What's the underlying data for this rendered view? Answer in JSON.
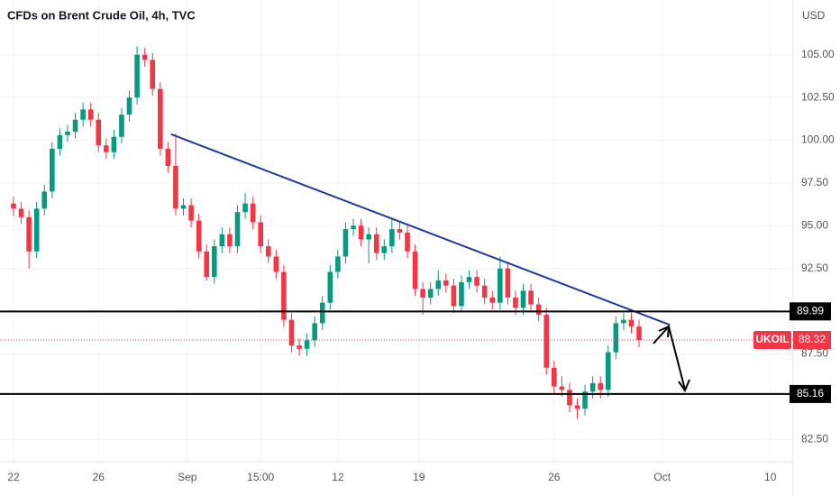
{
  "chart_data": {
    "type": "candlestick",
    "title": "CFDs on Brent Crude Oil, 4h, TVC",
    "y_unit": "USD",
    "up_color": "#089981",
    "down_color": "#f23645",
    "open": [
      96.3,
      96,
      95.5,
      93.5,
      96,
      97,
      99.5,
      100.3,
      100.5,
      101.2,
      101.8,
      101.2,
      99.7,
      99.3,
      100.2,
      101.5,
      102.5,
      105,
      104.7,
      103,
      99.5,
      98.5,
      96,
      96.2,
      95.3,
      93.5,
      92,
      93.8,
      94.5,
      93.8,
      95.8,
      96.3,
      95.2,
      93.8,
      93.2,
      92.3,
      89.5,
      88,
      87.8,
      88.3,
      89.3,
      90.5,
      92.3,
      93.2,
      94.8,
      95,
      94.2,
      94.5,
      93.4,
      93.8,
      94.8,
      94.6,
      93.5,
      91.3,
      90.8,
      91.3,
      91.8,
      91.5,
      90.3,
      91.7,
      92,
      91.5,
      90.8,
      90.5,
      92.5,
      90.8,
      90.2,
      91.2,
      90.4,
      89.8,
      86.7,
      85.6,
      85.4,
      84.5,
      84.3,
      85.3,
      85.8,
      85.4,
      87.6,
      89.3,
      89.5,
      89.1
    ],
    "high": [
      96.7,
      96.4,
      95.9,
      96.4,
      97.4,
      99.9,
      100.7,
      100.9,
      101.6,
      102.2,
      102.2,
      101.6,
      100.1,
      100.6,
      101.9,
      102.9,
      105.5,
      105.4,
      105.1,
      103.4,
      99.9,
      100.4,
      96.6,
      96.6,
      95.7,
      93.9,
      94.2,
      94.9,
      94.9,
      96.2,
      96.9,
      96.7,
      95.6,
      94.2,
      93.6,
      92.7,
      89.9,
      88.4,
      88.7,
      89.7,
      90.9,
      92.7,
      93.6,
      95.2,
      95.4,
      95.4,
      94.9,
      94.9,
      94.2,
      95.4,
      95.2,
      95,
      93.9,
      91.7,
      91.7,
      92.4,
      92.2,
      91.9,
      92.1,
      92.4,
      92.4,
      91.9,
      91.2,
      93.2,
      92.9,
      91.2,
      91.6,
      91.6,
      90.8,
      90.2,
      87.1,
      86.2,
      85.8,
      84.9,
      85.7,
      86.2,
      86.2,
      88,
      89.7,
      89.9,
      89.9,
      89.5
    ],
    "low": [
      95.6,
      95.1,
      92.5,
      93.1,
      95.6,
      96.6,
      99.1,
      99.9,
      100.1,
      100.8,
      100.8,
      99.3,
      98.9,
      98.9,
      99.8,
      101.1,
      102.1,
      104.3,
      102.6,
      99.1,
      98.1,
      95.6,
      95.6,
      94.9,
      93.1,
      91.8,
      91.6,
      93.4,
      93.4,
      93.4,
      95.4,
      94.8,
      93.4,
      92.8,
      91.9,
      89.1,
      87.6,
      87.4,
      87.4,
      87.9,
      88.9,
      90.1,
      91.9,
      92.8,
      94.4,
      93.8,
      92.8,
      93,
      93,
      93.4,
      94.2,
      93.1,
      90.9,
      89.8,
      90.4,
      90.9,
      91.1,
      89.9,
      89.9,
      91.3,
      91.1,
      90.4,
      90.1,
      90.1,
      90.4,
      89.8,
      89.8,
      90,
      89.4,
      86.3,
      85.2,
      85,
      84.1,
      83.7,
      83.9,
      84.9,
      84.9,
      85,
      87.2,
      88.9,
      88.7,
      87.9
    ],
    "close": [
      96,
      95.5,
      93.5,
      96,
      97,
      99.5,
      100.3,
      100.5,
      101.2,
      101.8,
      101.2,
      99.7,
      99.3,
      100.2,
      101.5,
      102.5,
      105,
      104.7,
      103,
      99.5,
      98.5,
      96,
      96.2,
      95.3,
      93.5,
      92,
      93.8,
      94.5,
      93.8,
      95.8,
      96.3,
      95.2,
      93.8,
      93.2,
      92.3,
      89.5,
      88,
      87.8,
      88.3,
      89.3,
      90.5,
      92.3,
      93.2,
      94.8,
      95,
      94.2,
      94.5,
      93.4,
      93.8,
      94.8,
      94.6,
      93.5,
      91.3,
      90.8,
      91.3,
      91.8,
      91.5,
      90.3,
      91.7,
      92,
      91.5,
      90.8,
      90.5,
      92.5,
      90.8,
      90.2,
      91.2,
      90.4,
      89.8,
      86.7,
      85.6,
      85.4,
      84.5,
      84.3,
      85.3,
      85.8,
      85.4,
      87.6,
      89.3,
      89.5,
      89.1,
      88.32
    ],
    "xlim": [
      -1.75,
      100.95
    ],
    "xticks": [
      {
        "value": 0,
        "label": "22"
      },
      {
        "value": 11,
        "label": "26"
      },
      {
        "value": 22.5,
        "label": "Sep"
      },
      {
        "value": 32,
        "label": "15:00"
      },
      {
        "value": 42,
        "label": "12"
      },
      {
        "value": 52.5,
        "label": "19"
      },
      {
        "value": 70,
        "label": "26"
      },
      {
        "value": 84,
        "label": "Oct"
      },
      {
        "value": 98,
        "label": "10"
      }
    ],
    "ylim": [
      81.2,
      108.2
    ],
    "yticks": [
      {
        "value": 82.5,
        "label": "82.50"
      },
      {
        "value": 87.5,
        "label": "87.50"
      },
      {
        "value": 92.5,
        "label": "92.50"
      },
      {
        "value": 95,
        "label": "95.00"
      },
      {
        "value": 97.5,
        "label": "97.50"
      },
      {
        "value": 100,
        "label": "100.00"
      },
      {
        "value": 102.5,
        "label": "102.50"
      },
      {
        "value": 105,
        "label": "105.00"
      }
    ],
    "grid": true,
    "levels": [
      89.99,
      85.16
    ],
    "symbol": "UKOIL",
    "last_price": 88.32,
    "trendline": {
      "x": [
        20.4,
        85
      ],
      "y": [
        100.35,
        89.2
      ],
      "color": "#1f3a9e"
    }
  }
}
